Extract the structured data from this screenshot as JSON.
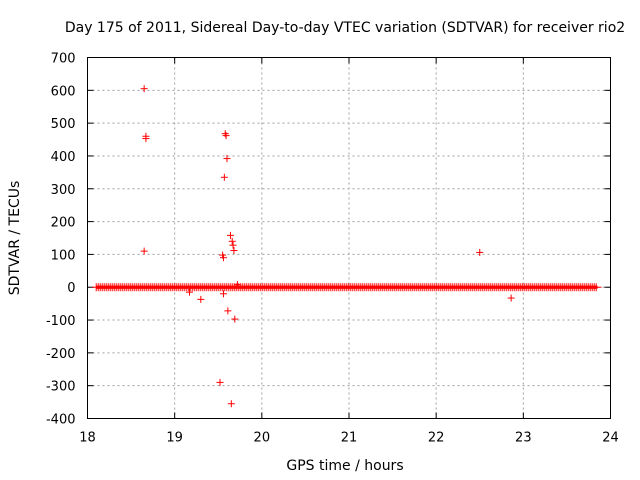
{
  "chart_data": {
    "type": "scatter",
    "title": "Day 175 of 2011, Sidereal Day-to-day VTEC variation (SDTVAR) for receiver rio2",
    "xlabel": "GPS time / hours",
    "ylabel": "SDTVAR / TECUs",
    "xlim": [
      18,
      24
    ],
    "ylim": [
      -400,
      700
    ],
    "xticks": [
      18,
      19,
      20,
      21,
      22,
      23,
      24
    ],
    "yticks": [
      -400,
      -300,
      -200,
      -100,
      0,
      100,
      200,
      300,
      400,
      500,
      600,
      700
    ],
    "grid": true,
    "marker": "+",
    "color": "#ff0000",
    "dense_band": {
      "x_start": 18.1,
      "x_end": 23.85,
      "y_min": -5,
      "y_max": 5
    },
    "outliers": [
      {
        "x": 18.65,
        "y": 605
      },
      {
        "x": 18.67,
        "y": 460
      },
      {
        "x": 18.67,
        "y": 453
      },
      {
        "x": 18.65,
        "y": 110
      },
      {
        "x": 19.17,
        "y": -15
      },
      {
        "x": 19.3,
        "y": -37
      },
      {
        "x": 19.52,
        "y": -290
      },
      {
        "x": 19.55,
        "y": 98
      },
      {
        "x": 19.56,
        "y": 90
      },
      {
        "x": 19.56,
        "y": -20
      },
      {
        "x": 19.57,
        "y": 335
      },
      {
        "x": 19.58,
        "y": 468
      },
      {
        "x": 19.59,
        "y": 462
      },
      {
        "x": 19.6,
        "y": 392
      },
      {
        "x": 19.61,
        "y": -72
      },
      {
        "x": 19.64,
        "y": 158
      },
      {
        "x": 19.65,
        "y": -355
      },
      {
        "x": 19.66,
        "y": 140
      },
      {
        "x": 19.67,
        "y": 128
      },
      {
        "x": 19.68,
        "y": 112
      },
      {
        "x": 19.69,
        "y": -97
      },
      {
        "x": 19.72,
        "y": 8
      },
      {
        "x": 22.5,
        "y": 106
      },
      {
        "x": 22.86,
        "y": -33
      }
    ]
  }
}
